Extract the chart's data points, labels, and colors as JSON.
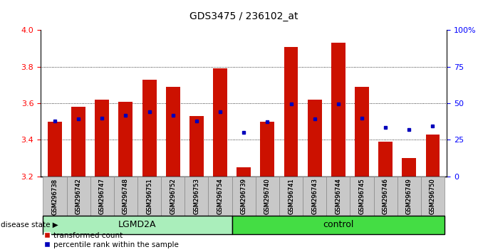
{
  "title": "GDS3475 / 236102_at",
  "samples": [
    "GSM296738",
    "GSM296742",
    "GSM296747",
    "GSM296748",
    "GSM296751",
    "GSM296752",
    "GSM296753",
    "GSM296754",
    "GSM296739",
    "GSM296740",
    "GSM296741",
    "GSM296743",
    "GSM296744",
    "GSM296745",
    "GSM296746",
    "GSM296749",
    "GSM296750"
  ],
  "groups": [
    "LGMD2A",
    "LGMD2A",
    "LGMD2A",
    "LGMD2A",
    "LGMD2A",
    "LGMD2A",
    "LGMD2A",
    "LGMD2A",
    "control",
    "control",
    "control",
    "control",
    "control",
    "control",
    "control",
    "control",
    "control"
  ],
  "red_values": [
    3.5,
    3.58,
    3.62,
    3.61,
    3.73,
    3.69,
    3.53,
    3.79,
    3.25,
    3.5,
    3.91,
    3.62,
    3.93,
    3.69,
    3.39,
    3.3,
    3.43
  ],
  "blue_values": [
    3.505,
    3.515,
    3.52,
    3.535,
    3.555,
    3.535,
    3.505,
    3.555,
    3.44,
    3.5,
    3.595,
    3.515,
    3.595,
    3.52,
    3.47,
    3.455,
    3.475
  ],
  "ylim": [
    3.2,
    4.0
  ],
  "yticks_left": [
    3.2,
    3.4,
    3.6,
    3.8,
    4.0
  ],
  "yticks_right": [
    0,
    25,
    50,
    75,
    100
  ],
  "ybase": 3.2,
  "bar_color": "#CC1100",
  "dot_color": "#0000BB",
  "gray_bg": "#C8C8C8",
  "lgmd_color": "#AAEEBB",
  "ctrl_color": "#44DD44",
  "disease_state_label": "disease state",
  "legend_items": [
    "transformed count",
    "percentile rank within the sample"
  ],
  "title_fontsize": 10,
  "bar_width": 0.6
}
